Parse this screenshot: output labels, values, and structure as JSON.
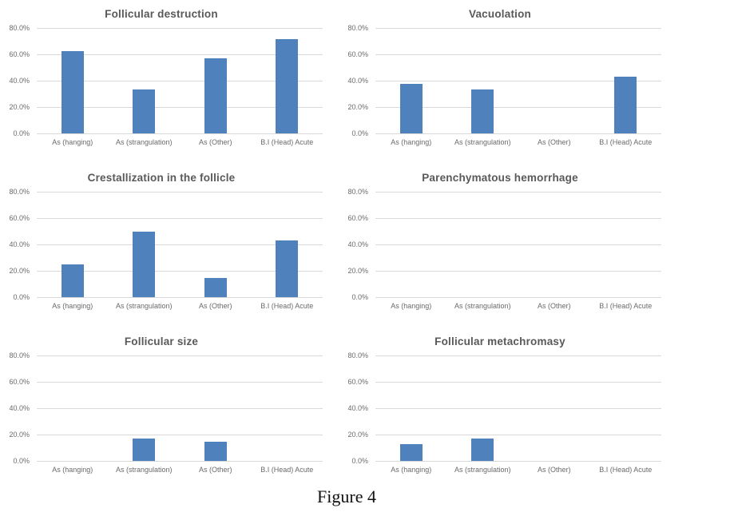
{
  "caption": "Figure 4",
  "colors": {
    "bar": "#4f81bd",
    "gridline": "#d9d9d9",
    "title_text": "#595959",
    "axis_text": "#6a6a6a",
    "background": "#ffffff"
  },
  "chart_data": [
    {
      "type": "bar",
      "title": "Follicular destruction",
      "categories": [
        "As (hanging)",
        "As (strangulation)",
        "As (Other)",
        "B.I (Head) Acute"
      ],
      "values": [
        62.5,
        33.3,
        57.1,
        71.4
      ],
      "ylim": [
        0,
        80
      ],
      "yticks": [
        "80.0%",
        "60.0%",
        "40.0%",
        "20.0%",
        "0.0%"
      ],
      "grid": true,
      "legend": "none",
      "bar_color": "#4f81bd"
    },
    {
      "type": "bar",
      "title": "Vacuolation",
      "categories": [
        "As (hanging)",
        "As (strangulation)",
        "As (Other)",
        "B.I (Head) Acute"
      ],
      "values": [
        37.5,
        33.3,
        0,
        42.9
      ],
      "ylim": [
        0,
        80
      ],
      "yticks": [
        "80.0%",
        "60.0%",
        "40.0%",
        "20.0%",
        "0.0%"
      ],
      "grid": true,
      "legend": "none",
      "bar_color": "#4f81bd"
    },
    {
      "type": "bar",
      "title": "Crestallization in the follicle",
      "categories": [
        "As (hanging)",
        "As (strangulation)",
        "As (Other)",
        "B.I (Head) Acute"
      ],
      "values": [
        25.0,
        50.0,
        14.3,
        42.9
      ],
      "ylim": [
        0,
        80
      ],
      "yticks": [
        "80.0%",
        "60.0%",
        "40.0%",
        "20.0%",
        "0.0%"
      ],
      "grid": true,
      "legend": "none",
      "bar_color": "#4f81bd"
    },
    {
      "type": "bar",
      "title": "Parenchymatous hemorrhage",
      "categories": [
        "As (hanging)",
        "As (strangulation)",
        "As (Other)",
        "B.I (Head) Acute"
      ],
      "values": [
        0,
        0,
        0,
        0
      ],
      "ylim": [
        0,
        80
      ],
      "yticks": [
        "80.0%",
        "60.0%",
        "40.0%",
        "20.0%",
        "0.0%"
      ],
      "grid": true,
      "legend": "none",
      "bar_color": "#4f81bd"
    },
    {
      "type": "bar",
      "title": "Follicular size",
      "categories": [
        "As (hanging)",
        "As (strangulation)",
        "As (Other)",
        "B.I (Head) Acute"
      ],
      "values": [
        0,
        16.7,
        14.3,
        0
      ],
      "ylim": [
        0,
        80
      ],
      "yticks": [
        "80.0%",
        "60.0%",
        "40.0%",
        "20.0%",
        "0.0%"
      ],
      "grid": true,
      "legend": "none",
      "bar_color": "#4f81bd"
    },
    {
      "type": "bar",
      "title": "Follicular metachromasy",
      "categories": [
        "As (hanging)",
        "As (strangulation)",
        "As (Other)",
        "B.I (Head) Acute"
      ],
      "values": [
        12.5,
        16.7,
        0,
        0
      ],
      "ylim": [
        0,
        80
      ],
      "yticks": [
        "80.0%",
        "60.0%",
        "40.0%",
        "20.0%",
        "0.0%"
      ],
      "grid": true,
      "legend": "none",
      "bar_color": "#4f81bd"
    }
  ]
}
